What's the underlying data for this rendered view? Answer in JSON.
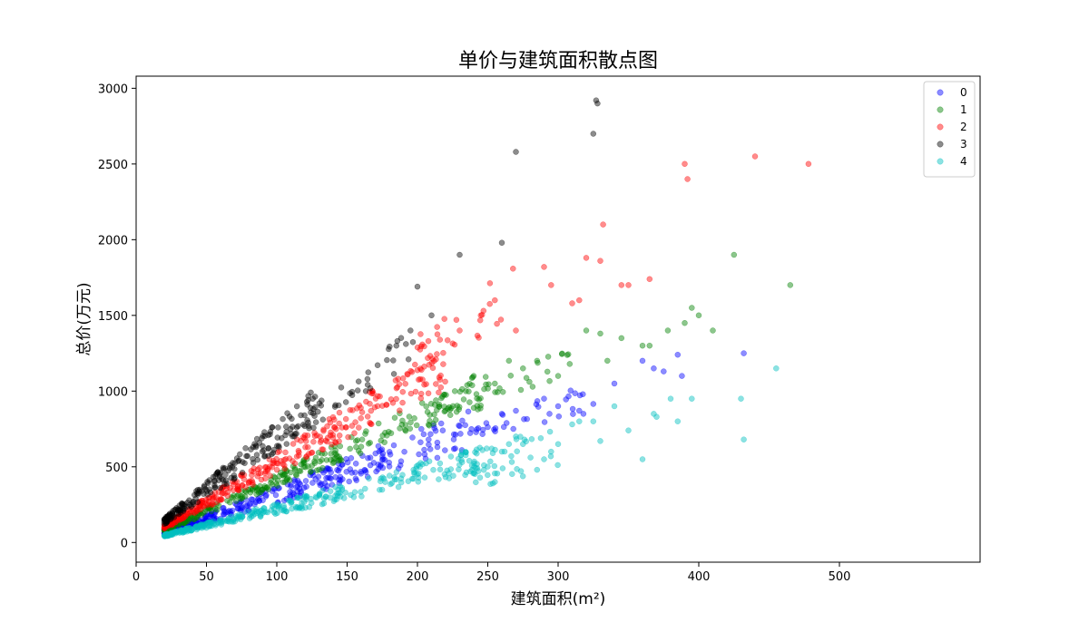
{
  "chart_data": {
    "type": "scatter",
    "title": "单价与建筑面积散点图",
    "xlabel": "建筑面积(m²)",
    "ylabel": "总价(万元)",
    "xlim": [
      0,
      600
    ],
    "ylim": [
      -130,
      3080
    ],
    "x_ticks": [
      0,
      50,
      100,
      150,
      200,
      250,
      300,
      400,
      500
    ],
    "y_ticks": [
      0,
      500,
      1000,
      1500,
      2000,
      2500,
      3000
    ],
    "grid": false,
    "legend_position": "top-right",
    "point_alpha": 0.45,
    "series": [
      {
        "name": "0",
        "color": "#0000ff",
        "bands": [
          [
            20,
            240,
            2.6,
            3.7,
            300
          ],
          [
            240,
            320,
            2.7,
            3.3,
            30
          ]
        ],
        "points": [
          [
            260,
            850
          ],
          [
            270,
            870
          ],
          [
            290,
            950
          ],
          [
            300,
            900
          ],
          [
            315,
            870
          ],
          [
            318,
            850
          ],
          [
            325,
            915
          ],
          [
            340,
            1050
          ],
          [
            360,
            1200
          ],
          [
            368,
            1150
          ],
          [
            375,
            1130
          ],
          [
            385,
            1240
          ],
          [
            388,
            1100
          ],
          [
            432,
            1250
          ]
        ]
      },
      {
        "name": "1",
        "color": "#008000",
        "bands": [
          [
            20,
            250,
            3.7,
            4.6,
            300
          ],
          [
            240,
            310,
            3.6,
            4.2,
            30
          ]
        ],
        "points": [
          [
            240,
            1100
          ],
          [
            255,
            1050
          ],
          [
            265,
            1200
          ],
          [
            275,
            1150
          ],
          [
            285,
            1200
          ],
          [
            300,
            1100
          ],
          [
            320,
            1400
          ],
          [
            330,
            1380
          ],
          [
            335,
            1200
          ],
          [
            345,
            1350
          ],
          [
            360,
            1300
          ],
          [
            365,
            1300
          ],
          [
            378,
            1400
          ],
          [
            390,
            1450
          ],
          [
            395,
            1550
          ],
          [
            400,
            1500
          ],
          [
            410,
            1400
          ],
          [
            425,
            1900
          ],
          [
            465,
            1700
          ]
        ]
      },
      {
        "name": "2",
        "color": "#ff0000",
        "bands": [
          [
            20,
            220,
            4.6,
            6.0,
            330
          ],
          [
            200,
            270,
            5.5,
            7.0,
            30
          ]
        ],
        "points": [
          [
            230,
            1400
          ],
          [
            245,
            1500
          ],
          [
            255,
            1600
          ],
          [
            270,
            1400
          ],
          [
            290,
            1820
          ],
          [
            295,
            1700
          ],
          [
            310,
            1580
          ],
          [
            315,
            1600
          ],
          [
            320,
            1880
          ],
          [
            330,
            1860
          ],
          [
            332,
            2100
          ],
          [
            345,
            1700
          ],
          [
            350,
            1700
          ],
          [
            365,
            1740
          ],
          [
            390,
            2500
          ],
          [
            392,
            2400
          ],
          [
            440,
            2550
          ],
          [
            478,
            2500
          ]
        ]
      },
      {
        "name": "3",
        "color": "#000000",
        "bands": [
          [
            20,
            130,
            6.0,
            8.0,
            220
          ],
          [
            130,
            200,
            6.0,
            7.3,
            30
          ]
        ],
        "points": [
          [
            185,
            1300
          ],
          [
            195,
            1400
          ],
          [
            200,
            1690
          ],
          [
            210,
            1500
          ],
          [
            230,
            1900
          ],
          [
            260,
            1980
          ],
          [
            270,
            2580
          ],
          [
            325,
            2700
          ],
          [
            327,
            2920
          ],
          [
            328,
            2900
          ]
        ]
      },
      {
        "name": "4",
        "color": "#00bfbf",
        "bands": [
          [
            20,
            250,
            1.9,
            2.6,
            330
          ],
          [
            240,
            300,
            1.5,
            2.6,
            40
          ]
        ],
        "points": [
          [
            255,
            400
          ],
          [
            260,
            600
          ],
          [
            265,
            650
          ],
          [
            270,
            700
          ],
          [
            275,
            650
          ],
          [
            285,
            480
          ],
          [
            290,
            550
          ],
          [
            295,
            600
          ],
          [
            300,
            650
          ],
          [
            310,
            780
          ],
          [
            315,
            800
          ],
          [
            325,
            800
          ],
          [
            330,
            670
          ],
          [
            340,
            900
          ],
          [
            350,
            740
          ],
          [
            360,
            550
          ],
          [
            368,
            850
          ],
          [
            370,
            830
          ],
          [
            380,
            950
          ],
          [
            385,
            800
          ],
          [
            395,
            950
          ],
          [
            430,
            950
          ],
          [
            432,
            680
          ],
          [
            455,
            1150
          ]
        ]
      }
    ]
  }
}
